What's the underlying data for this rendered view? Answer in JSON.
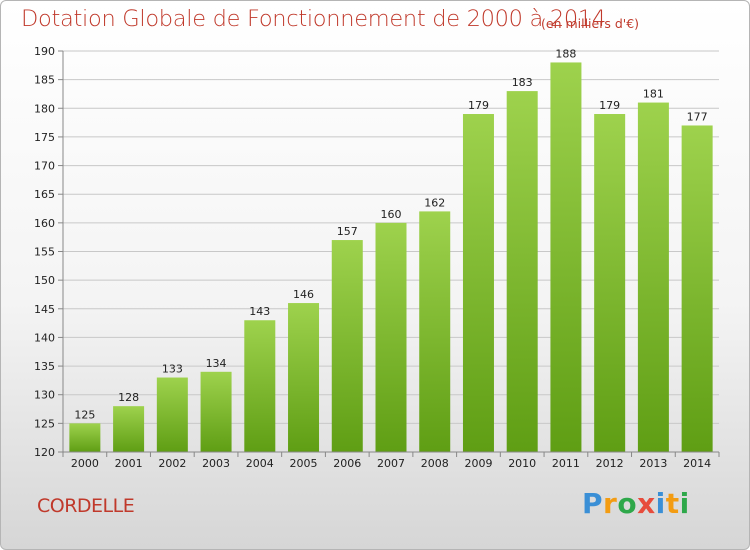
{
  "header": {
    "title": "Dotation Globale de Fonctionnement de 2000 à 2014",
    "subtitle": "(en milliers d'€)"
  },
  "footer": {
    "place": "CORDELLE",
    "logo_letters": [
      {
        "ch": "P",
        "color": "#3a8fd6"
      },
      {
        "ch": "r",
        "color": "#f39c12"
      },
      {
        "ch": "o",
        "color": "#2ea84a"
      },
      {
        "ch": "x",
        "color": "#e74c3c"
      },
      {
        "ch": "i",
        "color": "#3a8fd6"
      },
      {
        "ch": "t",
        "color": "#f39c12"
      },
      {
        "ch": "i",
        "color": "#2ea84a"
      }
    ]
  },
  "chart_data": {
    "type": "bar",
    "title": "Dotation Globale de Fonctionnement de 2000 à 2014",
    "subtitle": "(en milliers d'€)",
    "xlabel": "",
    "ylabel": "",
    "categories": [
      "2000",
      "2001",
      "2002",
      "2003",
      "2004",
      "2005",
      "2006",
      "2007",
      "2008",
      "2009",
      "2010",
      "2011",
      "2012",
      "2013",
      "2014"
    ],
    "values": [
      125,
      128,
      133,
      134,
      143,
      146,
      157,
      160,
      162,
      179,
      183,
      188,
      179,
      181,
      177
    ],
    "ylim": [
      120,
      190
    ],
    "yticks": [
      120,
      125,
      130,
      135,
      140,
      145,
      150,
      155,
      160,
      165,
      170,
      175,
      180,
      185,
      190
    ],
    "grid": true,
    "bar_color": "#7cbf2e",
    "legend": "none"
  }
}
